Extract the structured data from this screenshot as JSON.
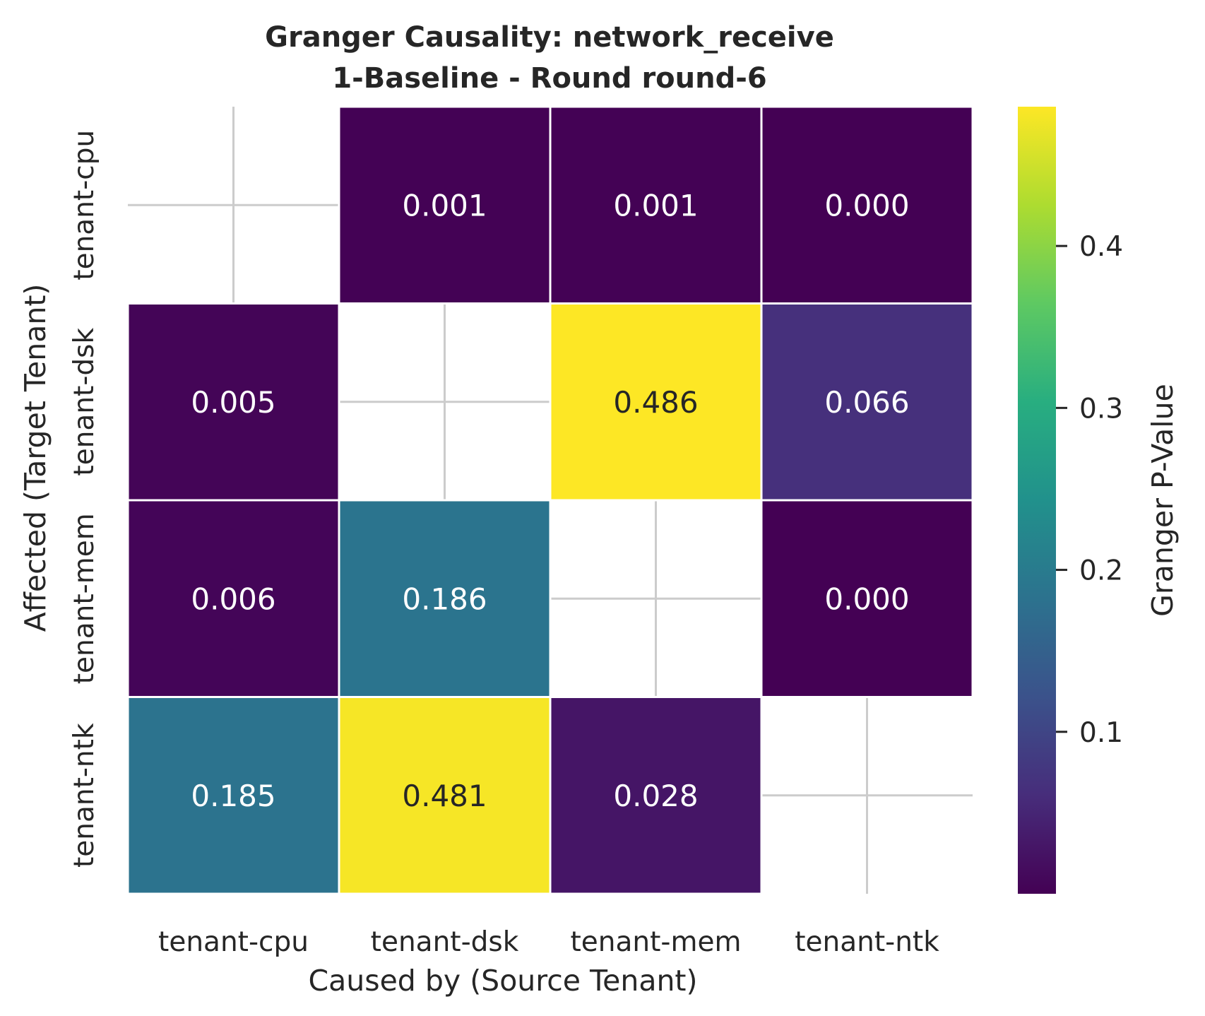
{
  "chart_data": {
    "type": "heatmap",
    "title": "Granger Causality: network_receive",
    "subtitle": "1-Baseline - Round round-6",
    "xlabel": "Caused by (Source Tenant)",
    "ylabel": "Affected (Target Tenant)",
    "x_categories": [
      "tenant-cpu",
      "tenant-dsk",
      "tenant-mem",
      "tenant-ntk"
    ],
    "y_categories": [
      "tenant-cpu",
      "tenant-dsk",
      "tenant-mem",
      "tenant-ntk"
    ],
    "values": [
      [
        null,
        0.001,
        0.001,
        0.0
      ],
      [
        0.005,
        null,
        0.486,
        0.066
      ],
      [
        0.006,
        0.186,
        null,
        0.0
      ],
      [
        0.185,
        0.481,
        0.028,
        null
      ]
    ],
    "value_format_decimals": 3,
    "colormap": "viridis",
    "colorbar": {
      "label": "Granger P-Value",
      "vmin": 0.0,
      "vmax": 0.486,
      "ticks": [
        0.1,
        0.2,
        0.3,
        0.4
      ],
      "tick_labels": [
        "0.1",
        "0.2",
        "0.3",
        "0.4"
      ]
    },
    "grid": true
  }
}
